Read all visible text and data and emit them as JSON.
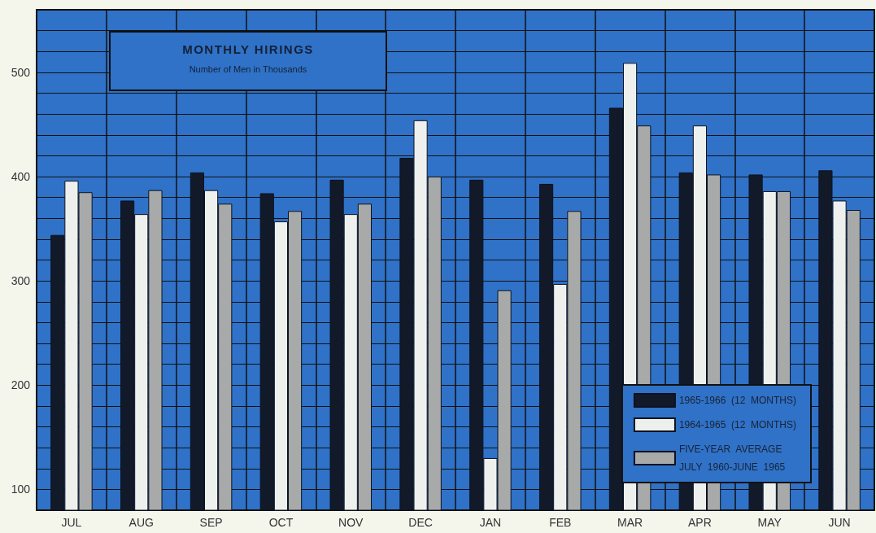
{
  "chart_data": {
    "type": "bar",
    "title": "MONTHLY HIRINGS",
    "subtitle": "Number of Men in Thousands",
    "categories": [
      "JUL",
      "AUG",
      "SEP",
      "OCT",
      "NOV",
      "DEC",
      "JAN",
      "FEB",
      "MAR",
      "APR",
      "MAY",
      "JUN"
    ],
    "series": [
      {
        "name": "1965-1966  (12  MONTHS)",
        "color": "#121a2a",
        "values": [
          344,
          377,
          404,
          384,
          397,
          418,
          397,
          393,
          466,
          404,
          402,
          406
        ]
      },
      {
        "name": "1964-1965  (12  MONTHS)",
        "color": "#eef0ee",
        "values": [
          396,
          364,
          387,
          357,
          364,
          454,
          130,
          297,
          509,
          449,
          386,
          377
        ]
      },
      {
        "name": "FIVE-YEAR  AVERAGE\nJULY  1960-JUNE  1965",
        "color": "#a8aaaa",
        "values": [
          385,
          387,
          374,
          367,
          374,
          400,
          291,
          367,
          449,
          402,
          386,
          368
        ]
      }
    ],
    "ylim": [
      80,
      560
    ],
    "yticks": [
      {
        "value": 80,
        "label": null
      },
      100,
      {
        "value": 120,
        "label": null
      },
      {
        "value": 140,
        "label": null
      },
      {
        "value": 160,
        "label": null
      },
      {
        "value": 180,
        "label": null
      },
      200,
      {
        "value": 220,
        "label": null
      },
      {
        "value": 240,
        "label": null
      },
      {
        "value": 260,
        "label": null
      },
      {
        "value": 280,
        "label": null
      },
      300,
      {
        "value": 320,
        "label": null
      },
      {
        "value": 340,
        "label": null
      },
      {
        "value": 360,
        "label": null
      },
      {
        "value": 380,
        "label": null
      },
      400,
      {
        "value": 420,
        "label": null
      },
      {
        "value": 440,
        "label": null
      },
      {
        "value": 460,
        "label": null
      },
      {
        "value": 480,
        "label": null
      },
      500,
      {
        "value": 520,
        "label": null
      },
      {
        "value": 540,
        "label": null
      },
      {
        "value": 560,
        "label": null
      }
    ],
    "grid": true,
    "legend": "bottom right"
  }
}
